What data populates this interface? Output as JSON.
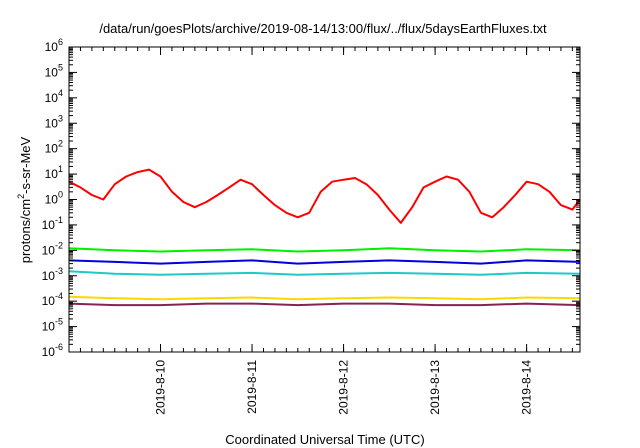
{
  "chart_data": {
    "type": "line",
    "title": "/data/run/goesPlots/archive/2019-08-14/13:00/flux/../flux/5daysEarthFluxes.txt",
    "xlabel": "Coordinated Universal Time (UTC)",
    "ylabel": {
      "pre": "protons/cm",
      "sup": "2",
      "post": "-s-sr-MeV"
    },
    "yscale": "log",
    "ylim": [
      1e-06,
      1000000.0
    ],
    "xlim": [
      "2019-08-09T00:00",
      "2019-08-14T14:00"
    ],
    "x_ticks": [
      "2019-8-10",
      "2019-8-11",
      "2019-8-12",
      "2019-8-13",
      "2019-8-14"
    ],
    "x_tick_dates": [
      "2019-08-10T00:00",
      "2019-08-11T00:00",
      "2019-08-12T00:00",
      "2019-08-13T00:00",
      "2019-08-14T00:00"
    ],
    "y_ticks": [
      {
        "base": "10",
        "exp": "-6"
      },
      {
        "base": "10",
        "exp": "-5"
      },
      {
        "base": "10",
        "exp": "-4"
      },
      {
        "base": "10",
        "exp": "-3"
      },
      {
        "base": "10",
        "exp": "-2"
      },
      {
        "base": "10",
        "exp": "-1"
      },
      {
        "base": "10",
        "exp": "0"
      },
      {
        "base": "10",
        "exp": "1"
      },
      {
        "base": "10",
        "exp": "2"
      },
      {
        "base": "10",
        "exp": "3"
      },
      {
        "base": "10",
        "exp": "4"
      },
      {
        "base": "10",
        "exp": "5"
      },
      {
        "base": "10",
        "exp": "6"
      }
    ],
    "grid": false,
    "legend": "none",
    "series": [
      {
        "color": "#ff0000",
        "x": [
          "2019-08-09T00:00",
          "2019-08-09T03:00",
          "2019-08-09T06:00",
          "2019-08-09T09:00",
          "2019-08-09T12:00",
          "2019-08-09T15:00",
          "2019-08-09T18:00",
          "2019-08-09T21:00",
          "2019-08-10T00:00",
          "2019-08-10T03:00",
          "2019-08-10T06:00",
          "2019-08-10T09:00",
          "2019-08-10T12:00",
          "2019-08-10T15:00",
          "2019-08-10T18:00",
          "2019-08-10T21:00",
          "2019-08-11T00:00",
          "2019-08-11T03:00",
          "2019-08-11T06:00",
          "2019-08-11T09:00",
          "2019-08-11T12:00",
          "2019-08-11T15:00",
          "2019-08-11T18:00",
          "2019-08-11T21:00",
          "2019-08-12T00:00",
          "2019-08-12T03:00",
          "2019-08-12T06:00",
          "2019-08-12T09:00",
          "2019-08-12T12:00",
          "2019-08-12T15:00",
          "2019-08-12T18:00",
          "2019-08-12T21:00",
          "2019-08-13T00:00",
          "2019-08-13T03:00",
          "2019-08-13T06:00",
          "2019-08-13T09:00",
          "2019-08-13T12:00",
          "2019-08-13T15:00",
          "2019-08-13T18:00",
          "2019-08-13T21:00",
          "2019-08-14T00:00",
          "2019-08-14T03:00",
          "2019-08-14T06:00",
          "2019-08-14T09:00",
          "2019-08-14T12:00",
          "2019-08-14T14:00"
        ],
        "values": [
          5,
          3,
          1.5,
          1,
          4,
          8,
          12,
          15,
          8,
          2,
          0.8,
          0.5,
          0.8,
          1.5,
          3,
          6,
          4,
          1.5,
          0.6,
          0.3,
          0.2,
          0.3,
          2,
          5,
          6,
          7,
          4,
          1.5,
          0.4,
          0.12,
          0.5,
          3,
          5,
          8,
          6,
          2,
          0.3,
          0.2,
          0.5,
          1.5,
          5,
          4,
          2,
          0.6,
          0.4,
          1
        ]
      },
      {
        "color": "#00ee00",
        "x": [
          "2019-08-09T00:00",
          "2019-08-09T12:00",
          "2019-08-10T00:00",
          "2019-08-10T12:00",
          "2019-08-11T00:00",
          "2019-08-11T12:00",
          "2019-08-12T00:00",
          "2019-08-12T12:00",
          "2019-08-13T00:00",
          "2019-08-13T12:00",
          "2019-08-14T00:00",
          "2019-08-14T14:00"
        ],
        "values": [
          0.012,
          0.01,
          0.009,
          0.01,
          0.011,
          0.009,
          0.01,
          0.012,
          0.01,
          0.009,
          0.011,
          0.01
        ]
      },
      {
        "color": "#0000dd",
        "x": [
          "2019-08-09T00:00",
          "2019-08-09T12:00",
          "2019-08-10T00:00",
          "2019-08-10T12:00",
          "2019-08-11T00:00",
          "2019-08-11T12:00",
          "2019-08-12T00:00",
          "2019-08-12T12:00",
          "2019-08-13T00:00",
          "2019-08-13T12:00",
          "2019-08-14T00:00",
          "2019-08-14T14:00"
        ],
        "values": [
          0.004,
          0.0035,
          0.003,
          0.0035,
          0.004,
          0.003,
          0.0035,
          0.004,
          0.0035,
          0.003,
          0.004,
          0.0035
        ]
      },
      {
        "color": "#1ec8c8",
        "x": [
          "2019-08-09T00:00",
          "2019-08-09T12:00",
          "2019-08-10T00:00",
          "2019-08-10T12:00",
          "2019-08-11T00:00",
          "2019-08-11T12:00",
          "2019-08-12T00:00",
          "2019-08-12T12:00",
          "2019-08-13T00:00",
          "2019-08-13T12:00",
          "2019-08-14T00:00",
          "2019-08-14T14:00"
        ],
        "values": [
          0.0015,
          0.0012,
          0.0011,
          0.0012,
          0.0013,
          0.0011,
          0.0012,
          0.0013,
          0.0012,
          0.0011,
          0.0013,
          0.0012
        ]
      },
      {
        "color": "#ffd700",
        "x": [
          "2019-08-09T00:00",
          "2019-08-09T12:00",
          "2019-08-10T00:00",
          "2019-08-10T12:00",
          "2019-08-11T00:00",
          "2019-08-11T12:00",
          "2019-08-12T00:00",
          "2019-08-12T12:00",
          "2019-08-13T00:00",
          "2019-08-13T12:00",
          "2019-08-14T00:00",
          "2019-08-14T14:00"
        ],
        "values": [
          0.00015,
          0.00013,
          0.00012,
          0.00013,
          0.00014,
          0.00012,
          0.00013,
          0.00014,
          0.00013,
          0.00012,
          0.00014,
          0.00013
        ]
      },
      {
        "color": "#882255",
        "x": [
          "2019-08-09T00:00",
          "2019-08-09T12:00",
          "2019-08-10T00:00",
          "2019-08-10T12:00",
          "2019-08-11T00:00",
          "2019-08-11T12:00",
          "2019-08-12T00:00",
          "2019-08-12T12:00",
          "2019-08-13T00:00",
          "2019-08-13T12:00",
          "2019-08-14T00:00",
          "2019-08-14T14:00"
        ],
        "values": [
          8e-05,
          7e-05,
          7e-05,
          8e-05,
          8e-05,
          7e-05,
          8e-05,
          8e-05,
          7e-05,
          7e-05,
          8e-05,
          7e-05
        ]
      }
    ]
  }
}
